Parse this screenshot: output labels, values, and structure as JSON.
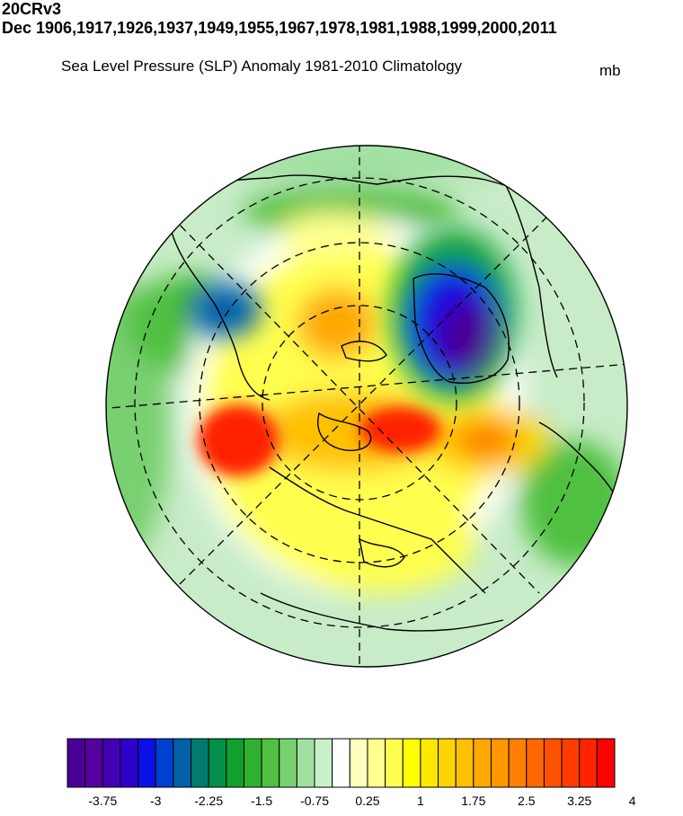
{
  "header": {
    "dataset": "20CRv3",
    "period": "Dec 1906,1917,1926,1937,1949,1955,1967,1978,1981,1988,1999,2000,2011",
    "subtitle": "Sea Level Pressure (SLP) Anomaly  1981-2010 Climatology",
    "units": "mb"
  },
  "map": {
    "projection": "north-polar-stereographic",
    "field": "SLP anomaly",
    "features": [
      "coastlines",
      "latitude-circles",
      "meridians"
    ],
    "anomaly_centers": [
      {
        "name": "negative-center-north-atlantic",
        "value": -4.0
      },
      {
        "name": "negative-center-north-pacific",
        "value": -2.25
      },
      {
        "name": "positive-center-siberia",
        "value": 4.0
      },
      {
        "name": "positive-center-arctic-canada",
        "value": 4.0
      },
      {
        "name": "positive-center-arctic",
        "value": 2.5
      }
    ]
  },
  "colorbar": {
    "levels": [
      -4,
      -3.75,
      -3.5,
      -3.25,
      -3,
      -2.75,
      -2.5,
      -2.25,
      -2,
      -1.75,
      -1.5,
      -1.25,
      -1,
      -0.75,
      -0.5,
      -0.25,
      0.25,
      0.5,
      0.75,
      1,
      1.25,
      1.5,
      1.75,
      2,
      2.25,
      2.5,
      2.75,
      3,
      3.25,
      3.5,
      3.75,
      4
    ],
    "colors": [
      "#4a0096",
      "#56009f",
      "#4400b4",
      "#2e00cc",
      "#0a10e6",
      "#0040d0",
      "#0060a8",
      "#007a6c",
      "#00904a",
      "#10a030",
      "#30b030",
      "#50c040",
      "#78d070",
      "#a0e0a0",
      "#c8f0c8",
      "#ffffff",
      "#ffffc0",
      "#ffff90",
      "#ffff50",
      "#ffff00",
      "#ffe800",
      "#ffd400",
      "#ffc000",
      "#ffa800",
      "#ff9800",
      "#ff8000",
      "#ff6800",
      "#ff5000",
      "#ff3c00",
      "#ff2400",
      "#ff0000"
    ],
    "tick_labels": [
      "-3.75",
      "-3",
      "-2.25",
      "-1.5",
      "-0.75",
      "0.25",
      "1",
      "1.75",
      "2.5",
      "3.25",
      "4"
    ]
  }
}
